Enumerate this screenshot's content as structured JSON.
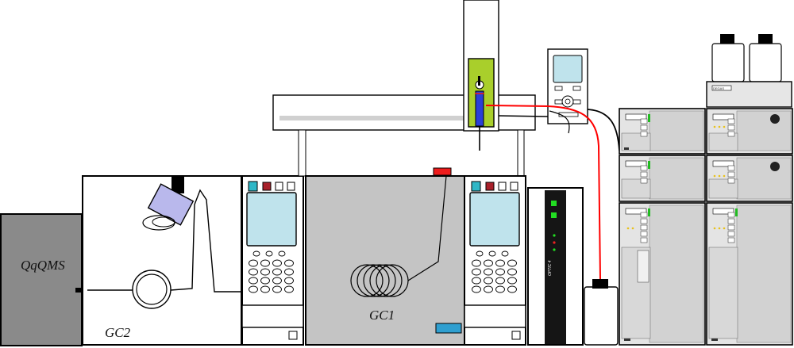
{
  "labels": {
    "qqqms": "QqQMS",
    "gc2": "GC2",
    "gc1": "GC1",
    "optic": "OPTIC 4"
  },
  "colors": {
    "gc_body": "#c4c4c4",
    "qms_body": "#8a8a8a",
    "screen": "#bfe3ec",
    "syringe_green": "#a9cf2b",
    "plunger_blue": "#2b3fd8",
    "line_red": "#ff0000",
    "led_green": "#22dd22",
    "led_red": "#ee2222",
    "oven_lamp": "#b9b8ec",
    "button_teal": "#2fb7c7",
    "button_dark_red": "#a8202a",
    "accent_blue_block": "#2f9fd0"
  },
  "icons": [
    "autosampler-syringe-icon",
    "coil-column-icon",
    "pyrolysis-lamp-icon",
    "controller-display-icon"
  ]
}
